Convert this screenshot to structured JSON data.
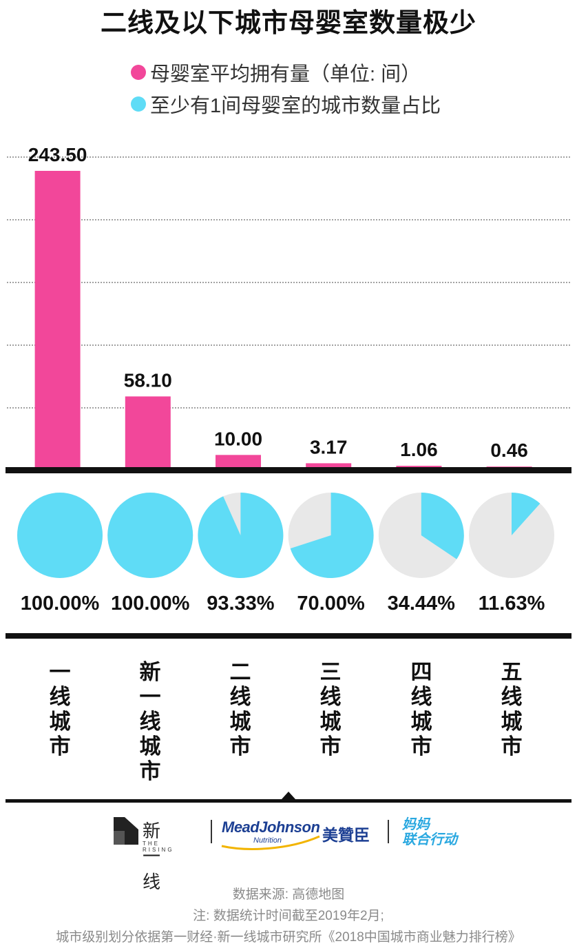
{
  "title": "二线及以下城市母婴室数量极少",
  "legend": [
    {
      "label": "母婴室平均拥有量（单位: 间）",
      "color": "#f2479a"
    },
    {
      "label": "至少有1间母婴室的城市数量占比",
      "color": "#5fdcf6"
    }
  ],
  "chart_data": [
    {
      "type": "bar",
      "categories": [
        "一线城市",
        "新一线城市",
        "二线城市",
        "三线城市",
        "四线城市",
        "五线城市"
      ],
      "series": [
        {
          "name": "母婴室平均拥有量（单位: 间）",
          "values": [
            243.5,
            58.1,
            10.0,
            3.17,
            1.06,
            0.46
          ]
        }
      ],
      "data_labels": [
        "243.50",
        "58.10",
        "10.00",
        "3.17",
        "1.06",
        "0.46"
      ],
      "ylim": [
        0,
        250
      ],
      "grid": true,
      "color": "#f2479a"
    },
    {
      "type": "pie",
      "categories": [
        "一线城市",
        "新一线城市",
        "二线城市",
        "三线城市",
        "四线城市",
        "五线城市"
      ],
      "series": [
        {
          "name": "至少有1间母婴室的城市数量占比",
          "values": [
            100.0,
            100.0,
            93.33,
            70.0,
            34.44,
            11.63
          ]
        }
      ],
      "data_labels": [
        "100.00%",
        "100.00%",
        "93.33%",
        "70.00%",
        "34.44%",
        "11.63%"
      ],
      "colors": {
        "filled": "#5fdcf6",
        "empty": "#e8e8e8"
      }
    }
  ],
  "logos": {
    "xinyixian": "新一线",
    "xinyixian_sub": "THE RISING",
    "meadjohnson": "MeadJohnson",
    "meadjohnson_sub": "Nutrition",
    "meadjohnson_cn": "美贊臣",
    "mama_line1": "妈妈",
    "mama_line2": "联合行动"
  },
  "notes": [
    "数据来源: 高德地图",
    "注: 数据统计时间截至2019年2月;",
    "城市级别划分依据第一财经·新一线城市研究所《2018中国城市商业魅力排行榜》"
  ]
}
